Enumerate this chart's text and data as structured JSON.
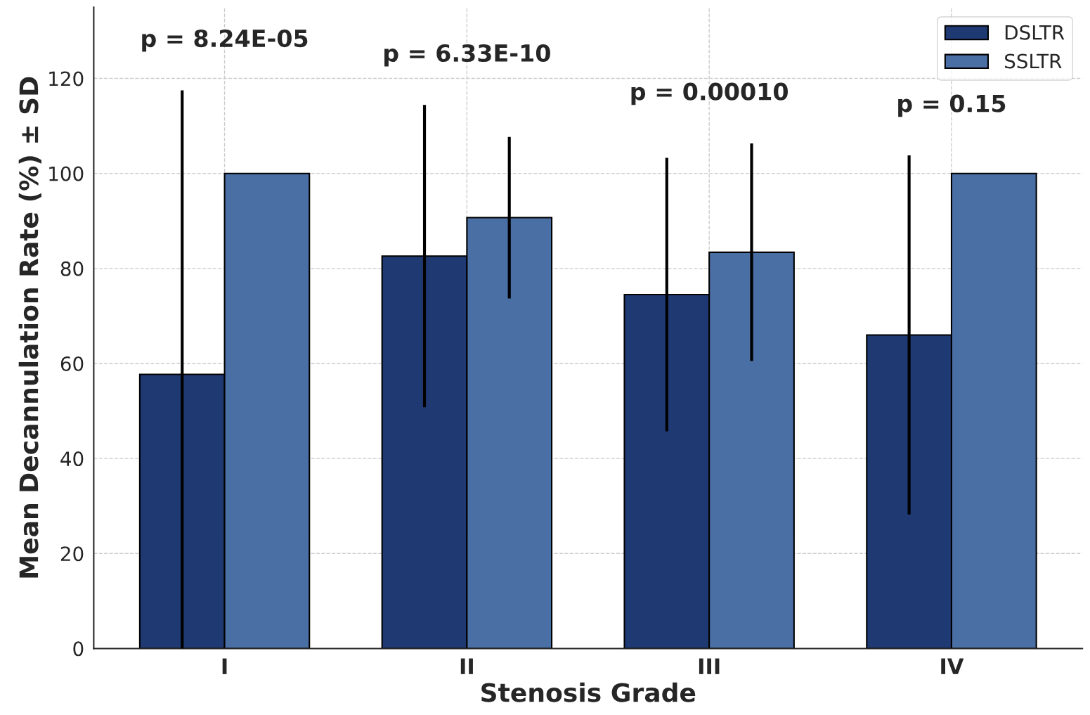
{
  "chart_data": {
    "type": "bar",
    "xlabel": "Stenosis Grade",
    "ylabel": "Mean Decannulation Rate (%) ± SD",
    "categories": [
      "I",
      "II",
      "III",
      "IV"
    ],
    "series": [
      {
        "name": "DSLTR",
        "color": "#1f3a73",
        "values": [
          57.7,
          82.6,
          74.5,
          66.0
        ],
        "errors": [
          [
            0,
            117.5
          ],
          31.8,
          28.8,
          37.8
        ]
      },
      {
        "name": "SSLTR",
        "color": "#4a6fa5",
        "values": [
          100,
          90.7,
          83.4,
          100
        ],
        "errors": [
          null,
          17.0,
          22.9,
          null
        ]
      }
    ],
    "ylim": [
      0,
      135
    ],
    "yticks": [
      0,
      20,
      40,
      60,
      80,
      100,
      120
    ],
    "annotations": [
      "p = 8.24E-05",
      "p = 6.33E-10",
      "p = 0.00010",
      "p = 0.15"
    ],
    "grid": true,
    "legend": "top right"
  }
}
